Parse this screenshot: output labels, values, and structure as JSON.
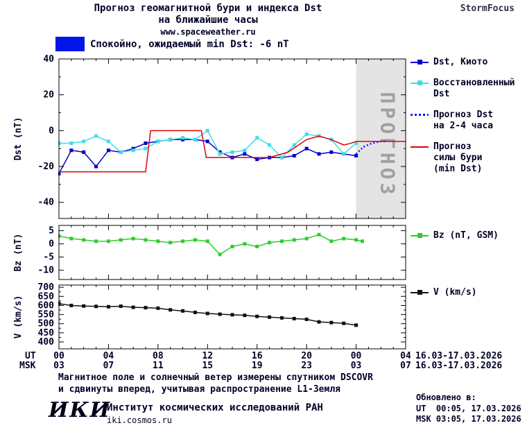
{
  "header": {
    "title_line1": "Прогноз геомагнитной бури и индекса Dst",
    "title_line2": "на ближайшие часы",
    "website": "www.spaceweather.ru",
    "brand": "StormFocus"
  },
  "status": {
    "label": "Спокойно, ожидаемый min Dst: -6 nT"
  },
  "colors": {
    "status_swatch": "#0016e8",
    "kyoto": "#0000cd",
    "restored": "#3fdce8",
    "forecast_dst": "#1515ff",
    "forecast_storm": "#e00000",
    "bz": "#2ecc2e",
    "v": "#111111",
    "axis_text": "#000028",
    "forecast_region_bg": "#e4e4e4",
    "forecast_region_text": "#a0a0a0"
  },
  "legend": {
    "kyoto": [
      "Dst, Киото"
    ],
    "restored": [
      "Восстановленный",
      "Dst"
    ],
    "forecast_dst": [
      "Прогноз Dst",
      "на 2-4 часа"
    ],
    "forecast_storm": [
      "Прогноз",
      "силы бури",
      "(min Dst)"
    ],
    "bz": [
      "Bz (nT, GSM)"
    ],
    "v": [
      "V (km/s)"
    ]
  },
  "time_axis": {
    "ut_label": "UT",
    "msk_label": "MSK",
    "ut_ticks": [
      "00",
      "04",
      "08",
      "12",
      "16",
      "20",
      "00",
      "04"
    ],
    "msk_ticks": [
      "03",
      "07",
      "11",
      "15",
      "19",
      "23",
      "03",
      "07"
    ],
    "ut_date": "16.03-17.03.2026",
    "msk_date": "16.03-17.03.2026"
  },
  "footnote": {
    "line1": "Магнитное поле и солнечный ветер измерены спутником DSCOVR",
    "line2": "и сдвинуты вперед, учитывая распространение L1-Земля"
  },
  "footer": {
    "logo": "ИКИ",
    "institute": "Институт космических исследований РАН",
    "site": "iki.cosmos.ru",
    "updated_label": "Обновлено в:",
    "updated_ut": "UT  00:05, 17.03.2026",
    "updated_msk": "MSK 03:05, 17.03.2026"
  },
  "chart_data": [
    {
      "id": "dst",
      "type": "line",
      "ylabel": "Dst (nT)",
      "ylim": [
        -49,
        40
      ],
      "yticks": [
        40,
        20,
        0,
        -20,
        -40
      ],
      "yticks_minor": [
        30,
        10,
        -10,
        -30
      ],
      "xlim": [
        0,
        28
      ],
      "forecast_region": {
        "start": 24,
        "end": 28,
        "label": "ПРОГНОЗ"
      },
      "series": [
        {
          "name": "Dst, Киото",
          "color": "#0000cd",
          "marker": "square",
          "x": [
            0,
            1,
            2,
            3,
            4,
            5,
            6,
            7,
            8,
            9,
            10,
            11,
            12,
            13,
            14,
            15,
            16,
            17,
            18,
            19,
            20,
            21,
            22,
            23,
            24
          ],
          "y": [
            -24,
            -11,
            -12,
            -20,
            -11,
            -12,
            -10,
            -7,
            -6,
            -5,
            -5,
            -5,
            -6,
            -12,
            -15,
            -13,
            -16,
            -15,
            -15,
            -14,
            -10,
            -13,
            -12,
            -13,
            -14
          ]
        },
        {
          "name": "Восстановленный Dst",
          "color": "#3fdce8",
          "marker": "square",
          "x": [
            0,
            1,
            2,
            3,
            4,
            5,
            6,
            7,
            8,
            9,
            10,
            11,
            12,
            13,
            14,
            15,
            16,
            17,
            18,
            19,
            20,
            21,
            22,
            23,
            24
          ],
          "y": [
            -7,
            -7,
            -6,
            -3,
            -6,
            -12,
            -11,
            -10,
            -6,
            -5,
            -4,
            -5,
            0,
            -13,
            -12,
            -11,
            -4,
            -8,
            -15,
            -8,
            -2,
            -3,
            -5,
            -13,
            -7
          ]
        },
        {
          "name": "Прогноз Dst на 2-4 часа",
          "color": "#1515ff",
          "style": "dotted",
          "width": 2.5,
          "x": [
            24,
            24.6,
            25.3,
            26,
            26.5
          ],
          "y": [
            -13,
            -9,
            -7,
            -6,
            -6
          ]
        },
        {
          "name": "Прогноз силы бури (min Dst)",
          "color": "#e00000",
          "width": 1.5,
          "x": [
            0,
            7,
            7.4,
            11.5,
            11.9,
            17,
            18.5,
            20,
            21,
            22,
            23,
            23.6,
            24,
            28
          ],
          "y": [
            -23,
            -23,
            0,
            0,
            -15,
            -15,
            -12,
            -5,
            -3,
            -5,
            -8,
            -7,
            -6,
            -6
          ]
        }
      ]
    },
    {
      "id": "bz",
      "type": "line",
      "ylabel": "Bz (nT)",
      "ylim": [
        -13.5,
        7
      ],
      "yticks": [
        5,
        0,
        -5,
        -10
      ],
      "yticks_minor": [],
      "xlim": [
        0,
        28
      ],
      "series": [
        {
          "name": "Bz (nT, GSM)",
          "color": "#2ecc2e",
          "marker": "square",
          "x": [
            0,
            1,
            2,
            3,
            4,
            5,
            6,
            7,
            8,
            9,
            10,
            11,
            12,
            13,
            14,
            15,
            16,
            17,
            18,
            19,
            20,
            21,
            22,
            23,
            24,
            24.5
          ],
          "y": [
            3,
            2,
            1.5,
            1,
            1,
            1.5,
            2,
            1.5,
            1,
            0.5,
            1,
            1.5,
            1,
            -4,
            -1,
            0,
            -1,
            0.5,
            1,
            1.5,
            2,
            3.5,
            1,
            2,
            1.5,
            1
          ]
        }
      ]
    },
    {
      "id": "v",
      "type": "line",
      "ylabel": "V (km/s)",
      "ylim": [
        362,
        712
      ],
      "yticks": [
        700,
        650,
        600,
        550,
        500,
        450,
        400
      ],
      "yticks_minor": [
        675,
        625,
        575,
        525,
        475,
        425
      ],
      "xlim": [
        0,
        28
      ],
      "series": [
        {
          "name": "V (km/s)",
          "color": "#111111",
          "marker": "square",
          "x": [
            0,
            1,
            2,
            3,
            4,
            5,
            6,
            7,
            8,
            9,
            10,
            11,
            12,
            13,
            14,
            15,
            16,
            17,
            18,
            19,
            20,
            21,
            22,
            23,
            24
          ],
          "y": [
            610,
            600,
            597,
            595,
            593,
            596,
            590,
            588,
            585,
            576,
            570,
            562,
            556,
            552,
            549,
            546,
            540,
            536,
            532,
            528,
            524,
            510,
            506,
            502,
            492
          ]
        }
      ]
    }
  ]
}
